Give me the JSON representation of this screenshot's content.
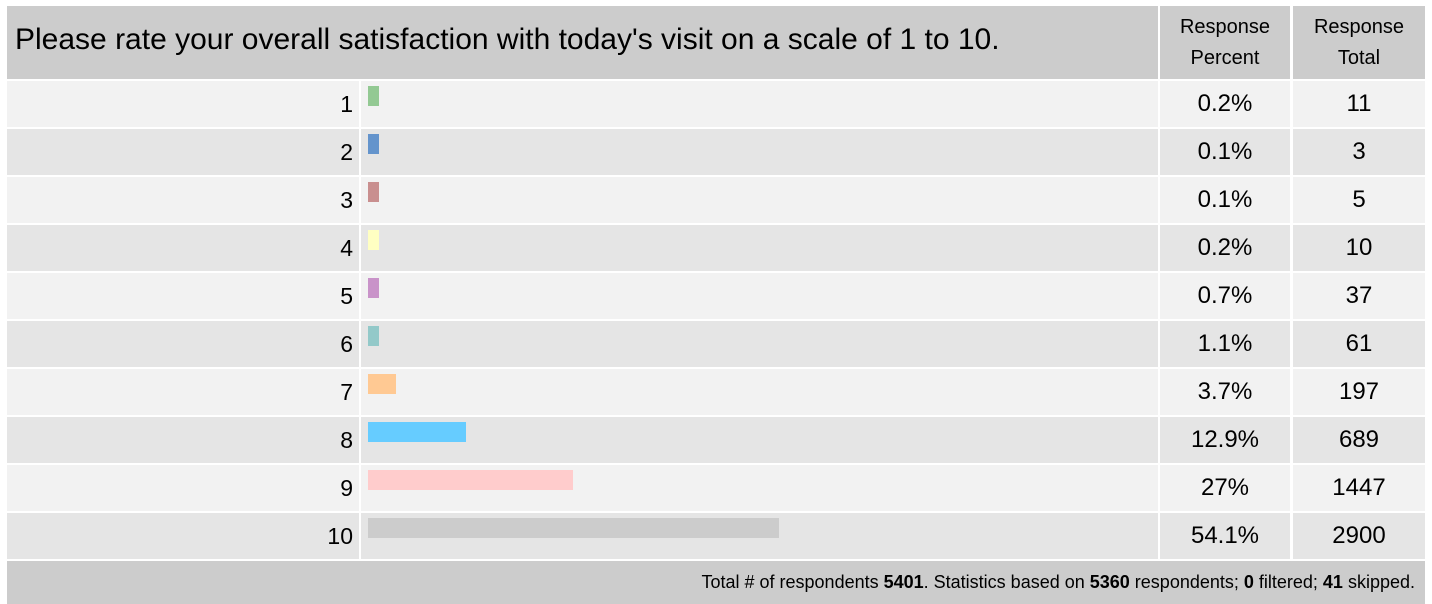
{
  "chart_data": {
    "type": "bar",
    "title": "Please rate your overall satisfaction with today's visit on a scale of 1 to 10.",
    "column_headers": [
      "Response Percent",
      "Response Total"
    ],
    "categories": [
      "1",
      "2",
      "3",
      "4",
      "5",
      "6",
      "7",
      "8",
      "9",
      "10"
    ],
    "values": [
      0.2,
      0.1,
      0.1,
      0.2,
      0.7,
      1.1,
      3.7,
      12.9,
      27,
      54.1
    ],
    "value_labels": [
      "0.2%",
      "0.1%",
      "0.1%",
      "0.2%",
      "0.7%",
      "1.1%",
      "3.7%",
      "12.9%",
      "27%",
      "54.1%"
    ],
    "totals": [
      11,
      3,
      5,
      10,
      37,
      61,
      197,
      689,
      1447,
      2900
    ],
    "colors": [
      "#93c993",
      "#6494cc",
      "#c98f8f",
      "#ffffc2",
      "#c993c9",
      "#93c9c9",
      "#ffc993",
      "#66ccff",
      "#ffcccc",
      "#cccccc"
    ],
    "footer": [
      "Total # of respondents ",
      5401,
      ". Statistics based on ",
      5360,
      " respondents; ",
      0,
      " filtered; ",
      41,
      " skipped."
    ]
  }
}
